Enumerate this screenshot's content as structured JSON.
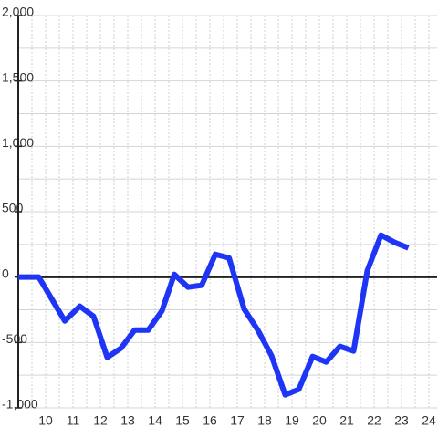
{
  "chart_data": {
    "type": "line",
    "x": [
      9,
      9.75,
      10.7,
      11.25,
      11.75,
      12.25,
      12.75,
      13.25,
      13.75,
      14.25,
      14.7,
      15.2,
      15.7,
      16.2,
      16.7,
      17.25,
      17.75,
      18.25,
      18.75,
      19.25,
      19.75,
      20.25,
      20.75,
      21.25,
      21.75,
      22.25,
      22.75,
      23.25
    ],
    "series": [
      {
        "color": "#1f35f5",
        "values": [
          0,
          0,
          -335,
          -223,
          -300,
          -614,
          -544,
          -405,
          -405,
          -258,
          21,
          -77,
          -63,
          174,
          147,
          -244,
          -405,
          -600,
          -900,
          -858,
          -607,
          -649,
          -530,
          -565,
          49,
          321,
          265,
          223
        ]
      }
    ],
    "xlim": [
      9,
      24.3
    ],
    "ylim": [
      -1000,
      2000
    ],
    "xticks": [
      10,
      11,
      12,
      13,
      14,
      15,
      16,
      17,
      18,
      19,
      20,
      21,
      22,
      23,
      24
    ],
    "x_minor_ticks": [
      9.5,
      10.5,
      11.5,
      12.5,
      13.5,
      14.5,
      15.5,
      16.5,
      17.5,
      18.5,
      19.5,
      20.5,
      21.5,
      22.5,
      23.5
    ],
    "yticks": [
      {
        "value": -1000,
        "label": "-1,000"
      },
      -500,
      0,
      500,
      {
        "value": 1000,
        "label": "1,000"
      },
      {
        "value": 1500,
        "label": "1,500"
      },
      {
        "value": 2000,
        "label": "2,000"
      }
    ],
    "y_minor_ticks": [
      -750,
      -250,
      250,
      750,
      1250,
      1750
    ],
    "grid": true
  }
}
